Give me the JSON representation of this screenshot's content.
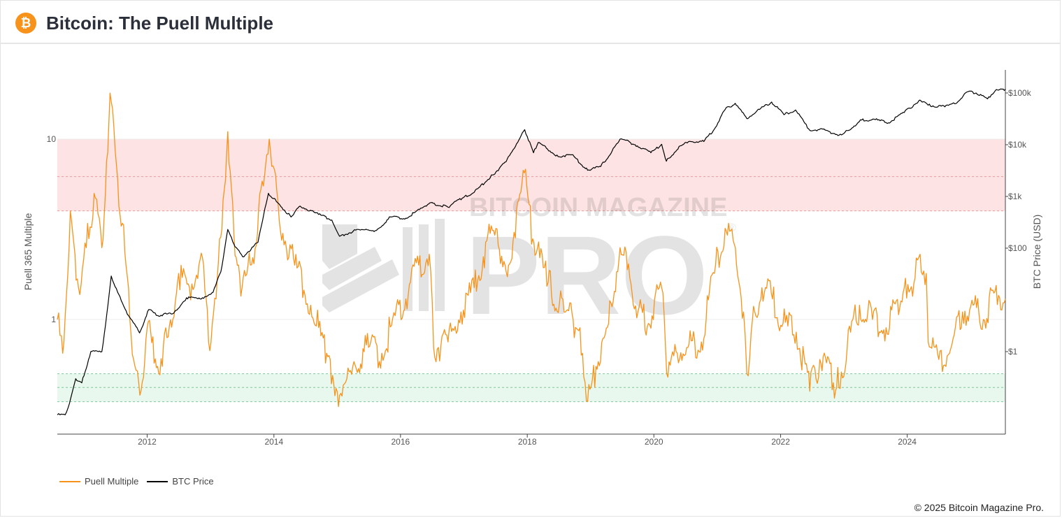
{
  "header": {
    "logo_glyph": "₿",
    "title": "Bitcoin: The Puell Multiple"
  },
  "footer": {
    "copyright": "© 2025 Bitcoin Magazine Pro."
  },
  "watermark": {
    "line1": "BITCOIN MAGAZINE",
    "line2": "PRO",
    "mark": "®"
  },
  "colors": {
    "puell": "#f7931a",
    "price": "#000000",
    "red_zone": "#fde3e3",
    "green_zone": "#e8f8ee",
    "red_dash": "#e99a9a",
    "green_dash": "#7fc79a"
  },
  "chart_data": {
    "type": "line",
    "title": "Bitcoin: The Puell Multiple",
    "x_ticks": [
      "2012",
      "2014",
      "2016",
      "2018",
      "2020",
      "2022",
      "2024"
    ],
    "x_range": [
      "2010-08-01",
      "2025-07-20"
    ],
    "y_left": {
      "label": "Puell 365 Multiple",
      "scale": "log",
      "ticks": [
        "10",
        "1"
      ],
      "range": [
        0.3,
        20
      ]
    },
    "y_right": {
      "label": "BTC Price (USD)",
      "scale": "log",
      "ticks": [
        "$100k",
        "$10k",
        "$1k",
        "$100",
        "$1"
      ],
      "range": [
        0.05,
        200000
      ]
    },
    "zones": [
      {
        "name": "red",
        "from": 4,
        "to": 10
      },
      {
        "name": "green",
        "from": 0.35,
        "to": 0.5
      }
    ],
    "zone_lines": [
      10,
      6.2,
      4,
      0.5,
      0.42,
      0.35
    ],
    "series": [
      {
        "name": "Puell Multiple",
        "axis": "left",
        "points": [
          [
            "2010-08-01",
            1.0
          ],
          [
            "2010-09-01",
            0.65
          ],
          [
            "2010-10-15",
            4.0
          ],
          [
            "2010-12-01",
            1.5
          ],
          [
            "2011-01-15",
            2.5
          ],
          [
            "2011-03-01",
            5.0
          ],
          [
            "2011-04-15",
            2.5
          ],
          [
            "2011-06-01",
            18.0
          ],
          [
            "2011-07-15",
            6.0
          ],
          [
            "2011-09-01",
            2.0
          ],
          [
            "2011-10-15",
            0.6
          ],
          [
            "2011-11-20",
            0.38
          ],
          [
            "2012-01-01",
            0.9
          ],
          [
            "2012-03-01",
            0.55
          ],
          [
            "2012-05-01",
            0.8
          ],
          [
            "2012-07-01",
            1.8
          ],
          [
            "2012-09-01",
            1.5
          ],
          [
            "2012-11-15",
            2.2
          ],
          [
            "2012-12-20",
            0.75
          ],
          [
            "2013-02-01",
            1.3
          ],
          [
            "2013-04-10",
            11.0
          ],
          [
            "2013-05-15",
            3.0
          ],
          [
            "2013-07-01",
            1.5
          ],
          [
            "2013-09-01",
            2.2
          ],
          [
            "2013-11-01",
            5.5
          ],
          [
            "2013-12-05",
            10.0
          ],
          [
            "2014-02-01",
            3.5
          ],
          [
            "2014-05-01",
            2.0
          ],
          [
            "2014-08-01",
            1.2
          ],
          [
            "2014-11-01",
            0.65
          ],
          [
            "2015-01-15",
            0.38
          ],
          [
            "2015-04-01",
            0.55
          ],
          [
            "2015-07-01",
            0.7
          ],
          [
            "2015-09-15",
            0.65
          ],
          [
            "2015-12-01",
            1.05
          ],
          [
            "2016-02-01",
            1.3
          ],
          [
            "2016-04-15",
            2.0
          ],
          [
            "2016-06-15",
            2.3
          ],
          [
            "2016-07-10",
            0.7
          ],
          [
            "2016-10-01",
            0.75
          ],
          [
            "2016-12-15",
            1.1
          ],
          [
            "2017-03-01",
            1.5
          ],
          [
            "2017-06-01",
            3.0
          ],
          [
            "2017-09-15",
            2.0
          ],
          [
            "2017-12-15",
            6.5
          ],
          [
            "2018-02-01",
            2.8
          ],
          [
            "2018-05-01",
            1.6
          ],
          [
            "2018-08-01",
            1.1
          ],
          [
            "2018-11-01",
            0.9
          ],
          [
            "2018-12-15",
            0.35
          ],
          [
            "2019-02-01",
            0.55
          ],
          [
            "2019-04-15",
            0.95
          ],
          [
            "2019-06-20",
            2.5
          ],
          [
            "2019-08-15",
            1.7
          ],
          [
            "2019-10-01",
            1.1
          ],
          [
            "2019-12-01",
            0.95
          ],
          [
            "2020-02-15",
            1.5
          ],
          [
            "2020-03-15",
            0.5
          ],
          [
            "2020-05-15",
            0.65
          ],
          [
            "2020-07-15",
            0.7
          ],
          [
            "2020-10-01",
            0.75
          ],
          [
            "2020-12-15",
            1.8
          ],
          [
            "2021-02-15",
            3.2
          ],
          [
            "2021-04-15",
            2.5
          ],
          [
            "2021-06-01",
            1.1
          ],
          [
            "2021-06-20",
            0.5
          ],
          [
            "2021-07-15",
            0.85
          ],
          [
            "2021-09-15",
            1.5
          ],
          [
            "2021-11-15",
            1.3
          ],
          [
            "2022-01-15",
            0.95
          ],
          [
            "2022-04-01",
            0.85
          ],
          [
            "2022-06-18",
            0.4
          ],
          [
            "2022-08-15",
            0.6
          ],
          [
            "2022-11-20",
            0.42
          ],
          [
            "2023-01-20",
            0.7
          ],
          [
            "2023-04-01",
            1.2
          ],
          [
            "2023-06-15",
            1.0
          ],
          [
            "2023-09-01",
            0.9
          ],
          [
            "2023-12-15",
            1.5
          ],
          [
            "2024-02-15",
            1.7
          ],
          [
            "2024-03-15",
            2.3
          ],
          [
            "2024-04-20",
            1.8
          ],
          [
            "2024-05-01",
            0.75
          ],
          [
            "2024-07-01",
            0.6
          ],
          [
            "2024-09-01",
            0.65
          ],
          [
            "2024-11-15",
            1.1
          ],
          [
            "2025-01-15",
            1.2
          ],
          [
            "2025-03-15",
            1.0
          ],
          [
            "2025-05-15",
            1.4
          ],
          [
            "2025-07-20",
            1.3
          ]
        ]
      },
      {
        "name": "BTC Price",
        "axis": "right",
        "points": [
          [
            "2010-08-01",
            0.06
          ],
          [
            "2010-09-15",
            0.06
          ],
          [
            "2010-10-10",
            0.1
          ],
          [
            "2010-11-15",
            0.3
          ],
          [
            "2010-12-20",
            0.25
          ],
          [
            "2011-02-10",
            1.0
          ],
          [
            "2011-04-15",
            1.0
          ],
          [
            "2011-05-20",
            8.0
          ],
          [
            "2011-06-08",
            29.0
          ],
          [
            "2011-07-15",
            14.0
          ],
          [
            "2011-09-15",
            5.0
          ],
          [
            "2011-11-18",
            2.3
          ],
          [
            "2012-01-10",
            6.5
          ],
          [
            "2012-03-01",
            5.0
          ],
          [
            "2012-06-01",
            5.5
          ],
          [
            "2012-08-15",
            11.0
          ],
          [
            "2012-11-15",
            11.0
          ],
          [
            "2013-01-15",
            14.0
          ],
          [
            "2013-03-01",
            35.0
          ],
          [
            "2013-04-10",
            230.0
          ],
          [
            "2013-05-15",
            120.0
          ],
          [
            "2013-07-05",
            68.0
          ],
          [
            "2013-10-01",
            130.0
          ],
          [
            "2013-11-30",
            1150.0
          ],
          [
            "2014-01-15",
            800.0
          ],
          [
            "2014-04-10",
            400.0
          ],
          [
            "2014-06-01",
            650.0
          ],
          [
            "2014-09-15",
            450.0
          ],
          [
            "2014-12-01",
            350.0
          ],
          [
            "2015-01-14",
            170.0
          ],
          [
            "2015-05-01",
            230.0
          ],
          [
            "2015-08-15",
            220.0
          ],
          [
            "2015-11-05",
            400.0
          ],
          [
            "2016-02-01",
            380.0
          ],
          [
            "2016-06-18",
            750.0
          ],
          [
            "2016-10-01",
            620.0
          ],
          [
            "2017-01-05",
            1000.0
          ],
          [
            "2017-03-01",
            1200.0
          ],
          [
            "2017-06-15",
            2600.0
          ],
          [
            "2017-09-01",
            4700.0
          ],
          [
            "2017-12-17",
            19500.0
          ],
          [
            "2018-02-06",
            7000.0
          ],
          [
            "2018-03-05",
            11000.0
          ],
          [
            "2018-06-28",
            5900.0
          ],
          [
            "2018-09-15",
            6400.0
          ],
          [
            "2018-12-15",
            3200.0
          ],
          [
            "2019-03-01",
            3800.0
          ],
          [
            "2019-06-26",
            13000.0
          ],
          [
            "2019-09-15",
            10000.0
          ],
          [
            "2019-12-15",
            7000.0
          ],
          [
            "2020-02-15",
            10200.0
          ],
          [
            "2020-03-13",
            4800.0
          ],
          [
            "2020-06-01",
            9500.0
          ],
          [
            "2020-08-01",
            11500.0
          ],
          [
            "2020-10-15",
            11500.0
          ],
          [
            "2020-12-15",
            20000.0
          ],
          [
            "2021-02-15",
            48000.0
          ],
          [
            "2021-04-14",
            63000.0
          ],
          [
            "2021-06-20",
            32000.0
          ],
          [
            "2021-09-01",
            48000.0
          ],
          [
            "2021-11-10",
            67000.0
          ],
          [
            "2022-01-20",
            38000.0
          ],
          [
            "2022-03-28",
            47000.0
          ],
          [
            "2022-06-18",
            19000.0
          ],
          [
            "2022-09-01",
            20000.0
          ],
          [
            "2022-11-21",
            15800.0
          ],
          [
            "2023-01-01",
            16500.0
          ],
          [
            "2023-03-01",
            23000.0
          ],
          [
            "2023-04-14",
            30000.0
          ],
          [
            "2023-07-01",
            30500.0
          ],
          [
            "2023-09-15",
            26500.0
          ],
          [
            "2023-12-15",
            42000.0
          ],
          [
            "2024-03-14",
            73000.0
          ],
          [
            "2024-05-01",
            58000.0
          ],
          [
            "2024-08-05",
            54000.0
          ],
          [
            "2024-10-01",
            62000.0
          ],
          [
            "2024-12-17",
            106000.0
          ],
          [
            "2025-02-01",
            100000.0
          ],
          [
            "2025-04-08",
            77000.0
          ],
          [
            "2025-05-22",
            110000.0
          ],
          [
            "2025-07-20",
            118000.0
          ]
        ]
      }
    ],
    "legend": {
      "placement": "bottom-left",
      "entries": [
        "Puell Multiple",
        "BTC Price"
      ]
    }
  }
}
